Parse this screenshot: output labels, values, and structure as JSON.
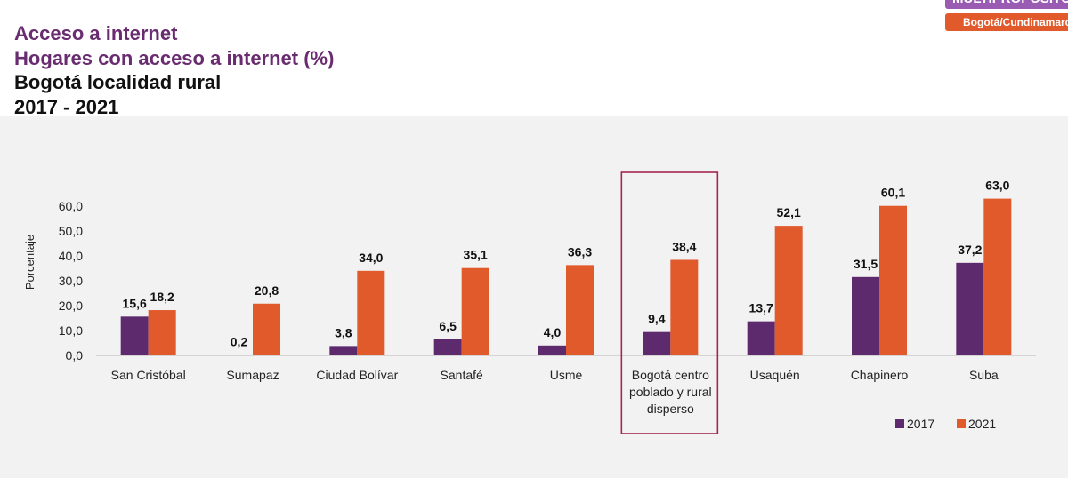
{
  "header": {
    "title_1": "Acceso a internet",
    "title_2": "Hogares con acceso a internet (%)",
    "title_3": "Bogotá localidad rural",
    "title_4": "2017 - 2021",
    "badge_top": "MULTIPROPÓSITO",
    "badge_bottom": "Bogotá/Cundinamarca"
  },
  "colors": {
    "s2017": "#5e2a6e",
    "s2021": "#e15a2c",
    "highlight": "#a3284f",
    "title_purple": "#6a2c70"
  },
  "chart_data": {
    "type": "bar",
    "ylabel": "Porcentaje",
    "ylim": [
      0,
      60
    ],
    "yticks": [
      "0,0",
      "10,0",
      "20,0",
      "30,0",
      "40,0",
      "50,0",
      "60,0"
    ],
    "categories": [
      "San Cristóbal",
      "Sumapaz",
      "Ciudad Bolívar",
      "Santafé",
      "Usme",
      "Bogotá centro poblado y rural disperso",
      "Usaquén",
      "Chapinero",
      "Suba"
    ],
    "category_lines": [
      [
        "San Cristóbal"
      ],
      [
        "Sumapaz"
      ],
      [
        "Ciudad Bolívar"
      ],
      [
        "Santafé"
      ],
      [
        "Usme"
      ],
      [
        "Bogotá centro",
        "poblado y rural",
        "disperso"
      ],
      [
        "Usaquén"
      ],
      [
        "Chapinero"
      ],
      [
        "Suba"
      ]
    ],
    "series": [
      {
        "name": "2017",
        "values": [
          15.6,
          0.2,
          3.8,
          6.5,
          4.0,
          9.4,
          13.7,
          31.5,
          37.2
        ],
        "labels": [
          "15,6",
          "0,2",
          "3,8",
          "6,5",
          "4,0",
          "9,4",
          "13,7",
          "31,5",
          "37,2"
        ]
      },
      {
        "name": "2021",
        "values": [
          18.2,
          20.8,
          34.0,
          35.1,
          36.3,
          38.4,
          52.1,
          60.1,
          63.0
        ],
        "labels": [
          "18,2",
          "20,8",
          "34,0",
          "35,1",
          "36,3",
          "38,4",
          "52,1",
          "60,1",
          "63,0"
        ]
      }
    ],
    "highlighted_category": "Bogotá centro poblado y rural disperso",
    "legend_position": "bottom-right",
    "grid": false
  }
}
